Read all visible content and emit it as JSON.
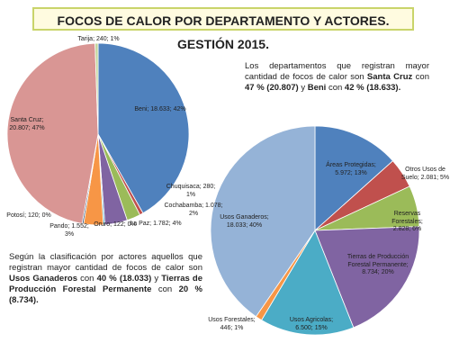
{
  "title": "FOCOS DE CALOR POR DEPARTAMENTO Y ACTORES. GESTIÓN 2015.",
  "paragraphs": [
    [
      {
        "text": "Los departamentos que registran mayor cantidad de focos de calor son ",
        "bold": false
      },
      {
        "text": "Santa Cruz",
        "bold": true
      },
      {
        "text": " con ",
        "bold": false
      },
      {
        "text": "47 % (20.807)",
        "bold": true
      },
      {
        "text": " y ",
        "bold": false
      },
      {
        "text": "Beni",
        "bold": true
      },
      {
        "text": " con ",
        "bold": false
      },
      {
        "text": "42 % (18.633).",
        "bold": true
      }
    ],
    [
      {
        "text": "Según la clasificación por actores aquellos que registran mayor cantidad de focos de calor son ",
        "bold": false
      },
      {
        "text": "Usos Ganaderos",
        "bold": true
      },
      {
        "text": " con ",
        "bold": false
      },
      {
        "text": "40 % (18.033)",
        "bold": true
      },
      {
        "text": " y ",
        "bold": false
      },
      {
        "text": "Tierras de Producción Forestal Permanente",
        "bold": true
      },
      {
        "text": " con ",
        "bold": false
      },
      {
        "text": "20 % (8.734).",
        "bold": true
      }
    ]
  ],
  "chart_data": [
    {
      "type": "pie",
      "values": [
        18633,
        280,
        1078,
        1782,
        122,
        1552,
        120,
        20807,
        240
      ],
      "value_labels": [
        "Beni; 18.633; 42%",
        "Chuquisaca; 280; 1%",
        "Cochabamba; 1.078; 2%",
        "La Paz; 1.782; 4%",
        "Oruro; 122; 0%",
        "Pando; 1.552; 3%",
        "Potosí; 120; 0%",
        "Santa Cruz; 20.807; 47%",
        "Tarija; 240; 1%"
      ],
      "colors": [
        "#4f81bd",
        "#c0504d",
        "#9bbb59",
        "#8064a2",
        "#4bacc6",
        "#f79646",
        "#2c4d75",
        "#d99694",
        "#c3d69b"
      ]
    },
    {
      "type": "pie",
      "values": [
        5972,
        2081,
        2828,
        8734,
        6500,
        446,
        18033
      ],
      "value_labels": [
        "Áreas Protegidas; 5.972; 13%",
        "Otros Usos de Suelo; 2.081; 5%",
        "Reservas Forestales; 2.828; 6%",
        "Tierras de Producción Forestal Permanente; 8.734; 20%",
        "Usos Agricolas; 6.500; 15%",
        "Usos Forestales; 446; 1%",
        "Usos Ganaderos; 18.033; 40%"
      ],
      "colors": [
        "#4f81bd",
        "#c0504d",
        "#9bbb59",
        "#8064a2",
        "#4bacc6",
        "#f79646",
        "#95b3d7"
      ]
    }
  ]
}
